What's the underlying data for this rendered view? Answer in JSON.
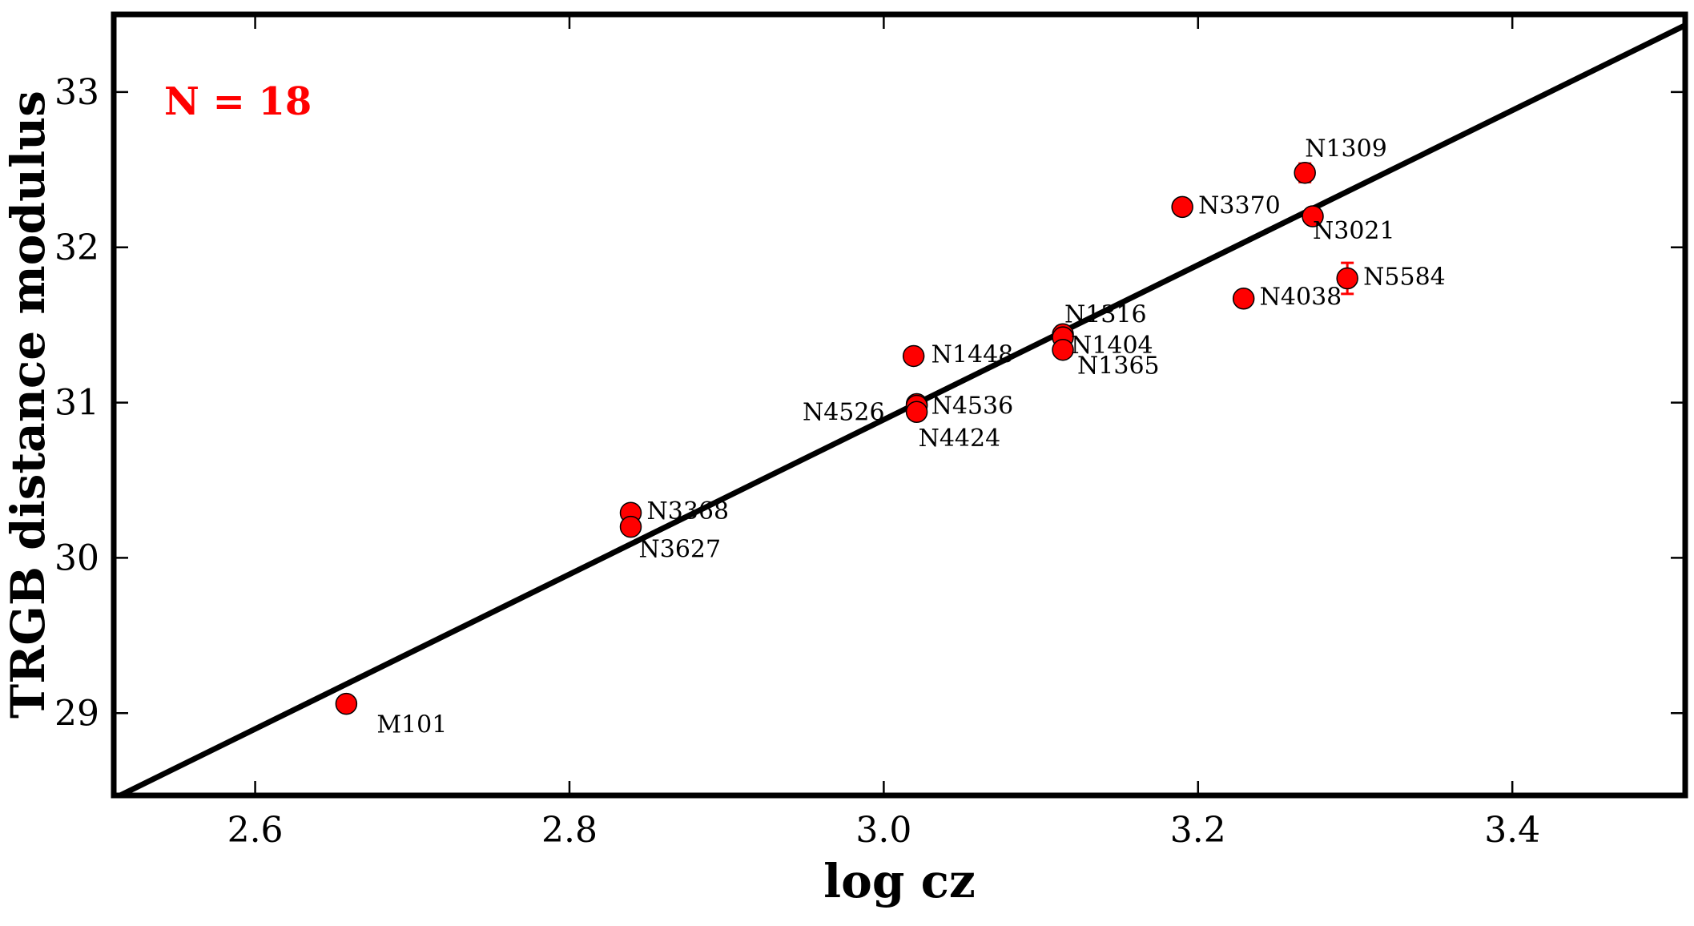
{
  "chart_data": {
    "type": "scatter",
    "title": "",
    "xlabel": "log cz",
    "ylabel": "TRGB distance modulus",
    "xlim": [
      2.51,
      3.51
    ],
    "ylim": [
      28.47,
      33.5
    ],
    "xticks": [
      "2.6",
      "2.8",
      "3.0",
      "3.2",
      "3.4"
    ],
    "yticks": [
      "29",
      "30",
      "31",
      "32",
      "33"
    ],
    "grid": false,
    "annotation": "N = 18",
    "annotation_color": "#ff0000",
    "point_color": "#ff0000",
    "line_color": "#000000",
    "fit_line": {
      "x": [
        2.51,
        3.51
      ],
      "y": [
        28.45,
        33.43
      ]
    },
    "points": [
      {
        "label": "M101",
        "x": 2.658,
        "y": 29.06,
        "err": 0.03
      },
      {
        "label": "N3368",
        "x": 2.839,
        "y": 30.29,
        "err": 0.03
      },
      {
        "label": "N3627",
        "x": 2.839,
        "y": 30.2,
        "err": 0.03
      },
      {
        "label": "N1448",
        "x": 3.019,
        "y": 31.3,
        "err": 0.03
      },
      {
        "label": "N4526",
        "x": 3.021,
        "y": 30.99,
        "err": 0.05
      },
      {
        "label": "N4536",
        "x": 3.021,
        "y": 30.98,
        "err": 0.03
      },
      {
        "label": "N4424",
        "x": 3.021,
        "y": 30.94,
        "err": 0.03
      },
      {
        "label": "N1316",
        "x": 3.114,
        "y": 31.44,
        "err": 0.03
      },
      {
        "label": "N1404",
        "x": 3.114,
        "y": 31.42,
        "err": 0.03
      },
      {
        "label": "N1365",
        "x": 3.114,
        "y": 31.34,
        "err": 0.03
      },
      {
        "label": "N3370",
        "x": 3.19,
        "y": 32.26,
        "err": 0.03
      },
      {
        "label": "N4038",
        "x": 3.229,
        "y": 31.67,
        "err": 0.03
      },
      {
        "label": "N1309",
        "x": 3.268,
        "y": 32.48,
        "err": 0.06
      },
      {
        "label": "N3021",
        "x": 3.273,
        "y": 32.2,
        "err": 0.03
      },
      {
        "label": "N5584",
        "x": 3.295,
        "y": 31.8,
        "err": 0.1
      }
    ]
  }
}
